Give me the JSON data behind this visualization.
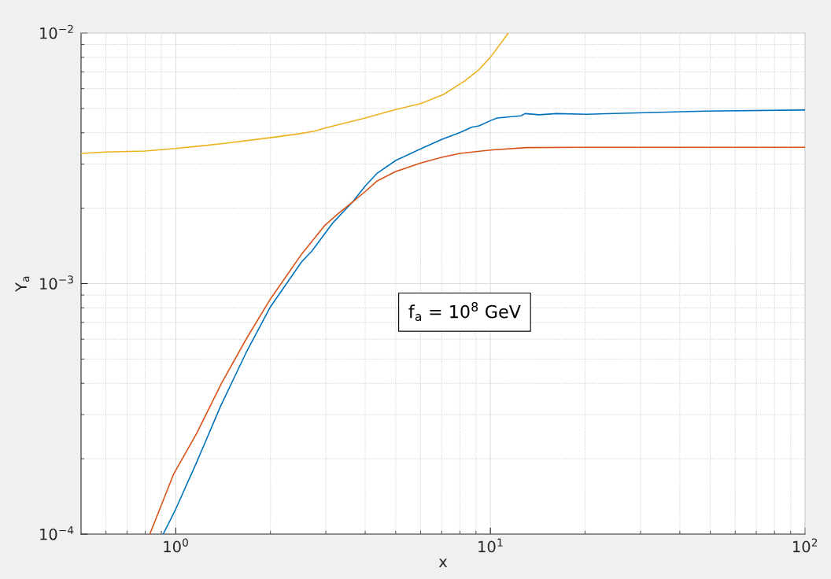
{
  "chart_data": {
    "type": "line",
    "xlabel": "x",
    "ylabel": "Y$_{a}$",
    "annotations": [
      "f$_{a}$ = 10$^{8}$ GeV"
    ],
    "log": "xy",
    "grid": true,
    "xlim": [
      0.5,
      100
    ],
    "ylim": [
      0.0001,
      0.01
    ],
    "xticks": [
      {
        "value": 0.6,
        "label": null
      },
      {
        "value": 0.7,
        "label": null
      },
      {
        "value": 0.8,
        "label": null
      },
      {
        "value": 0.9,
        "label": null
      },
      {
        "value": 1,
        "label": "10$^{0}$"
      },
      {
        "value": 2,
        "label": null
      },
      {
        "value": 3,
        "label": null
      },
      {
        "value": 4,
        "label": null
      },
      {
        "value": 5,
        "label": null
      },
      {
        "value": 6,
        "label": null
      },
      {
        "value": 7,
        "label": null
      },
      {
        "value": 8,
        "label": null
      },
      {
        "value": 9,
        "label": null
      },
      {
        "value": 10,
        "label": "10$^{1}$"
      },
      {
        "value": 20,
        "label": null
      },
      {
        "value": 30,
        "label": null
      },
      {
        "value": 40,
        "label": null
      },
      {
        "value": 50,
        "label": null
      },
      {
        "value": 60,
        "label": null
      },
      {
        "value": 70,
        "label": null
      },
      {
        "value": 80,
        "label": null
      },
      {
        "value": 90,
        "label": null
      },
      {
        "value": 100,
        "label": "10$^{2}$"
      }
    ],
    "yticks": [
      {
        "value": 0.0001,
        "label": "10$^{−4}$"
      },
      {
        "value": 0.0002,
        "label": null
      },
      {
        "value": 0.0003,
        "label": null
      },
      {
        "value": 0.0004,
        "label": null
      },
      {
        "value": 0.0005,
        "label": null
      },
      {
        "value": 0.0006,
        "label": null
      },
      {
        "value": 0.0007,
        "label": null
      },
      {
        "value": 0.0008,
        "label": null
      },
      {
        "value": 0.0009,
        "label": null
      },
      {
        "value": 0.001,
        "label": "10$^{−3}$"
      },
      {
        "value": 0.002,
        "label": null
      },
      {
        "value": 0.003,
        "label": null
      },
      {
        "value": 0.004,
        "label": null
      },
      {
        "value": 0.005,
        "label": null
      },
      {
        "value": 0.006,
        "label": null
      },
      {
        "value": 0.007,
        "label": null
      },
      {
        "value": 0.008,
        "label": null
      },
      {
        "value": 0.009,
        "label": null
      },
      {
        "value": 0.01,
        "label": "10$^{−2}$"
      }
    ],
    "series": [
      {
        "color": "#0072bd",
        "x": [
          0.912,
          1.0,
          1.168,
          1.388,
          1.68,
          2.0,
          2.51,
          2.71,
          3.16,
          3.65,
          4.0,
          4.37,
          5.0,
          6.0,
          7.0,
          8.0,
          8.71,
          9.2,
          10.0,
          10.5,
          12.5,
          12.9,
          14.3,
          16.2,
          20.2,
          29.3,
          48,
          100
        ],
        "values": [
          0.0001,
          0.000126,
          0.000195,
          0.000324,
          0.000536,
          0.000808,
          0.00122,
          0.00135,
          0.00175,
          0.00212,
          0.00245,
          0.00276,
          0.0031,
          0.00345,
          0.00376,
          0.00401,
          0.00421,
          0.00426,
          0.00447,
          0.00458,
          0.00467,
          0.00477,
          0.00472,
          0.00477,
          0.00474,
          0.0048,
          0.00488,
          0.00493
        ]
      },
      {
        "color": "#d95319",
        "x": [
          0.827,
          0.983,
          1.168,
          1.4,
          1.68,
          2.0,
          2.51,
          2.98,
          3.28,
          3.65,
          4.0,
          4.37,
          5.0,
          6.0,
          7.0,
          8.0,
          10.0,
          13.0,
          20,
          50,
          100
        ],
        "values": [
          0.0001,
          0.000173,
          0.000254,
          0.000402,
          0.000605,
          0.000869,
          0.00131,
          0.00171,
          0.0019,
          0.00212,
          0.00233,
          0.00257,
          0.0028,
          0.00303,
          0.00319,
          0.00331,
          0.00341,
          0.00349,
          0.0035,
          0.0035,
          0.0035
        ]
      },
      {
        "color": "#edb120",
        "x": [
          0.5,
          0.597,
          0.796,
          1.0,
          1.41,
          1.99,
          2.46,
          2.76,
          2.98,
          4.0,
          5.0,
          6.0,
          7.1,
          8.27,
          9.12,
          10.0,
          11.4
        ],
        "values": [
          0.00331,
          0.00335,
          0.00338,
          0.00346,
          0.00362,
          0.00382,
          0.00396,
          0.00406,
          0.00418,
          0.00458,
          0.00495,
          0.00523,
          0.00569,
          0.00643,
          0.00707,
          0.008,
          0.01
        ]
      }
    ]
  }
}
